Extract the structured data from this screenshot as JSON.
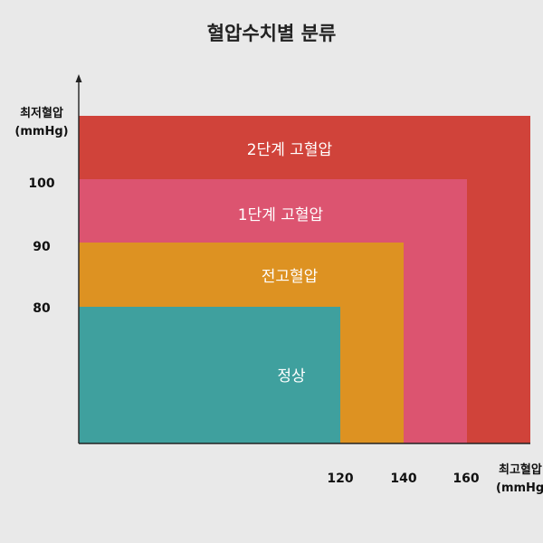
{
  "chart_data": {
    "type": "area",
    "title": "혈압수치별 분류",
    "ylabel": [
      "최저혈압",
      "(mmHg)"
    ],
    "xlabel": [
      "최고혈압",
      "(mmHg)"
    ],
    "x_ticks": [
      120,
      140,
      160
    ],
    "y_ticks": [
      100,
      90,
      80
    ],
    "categories": [
      {
        "name": "2단계 고혈압",
        "color": "#d0433a"
      },
      {
        "name": "1단계 고혈압",
        "color": "#dc5470"
      },
      {
        "name": "전고혈압",
        "color": "#dd9222"
      },
      {
        "name": "정상",
        "color": "#3fa09e"
      }
    ]
  }
}
